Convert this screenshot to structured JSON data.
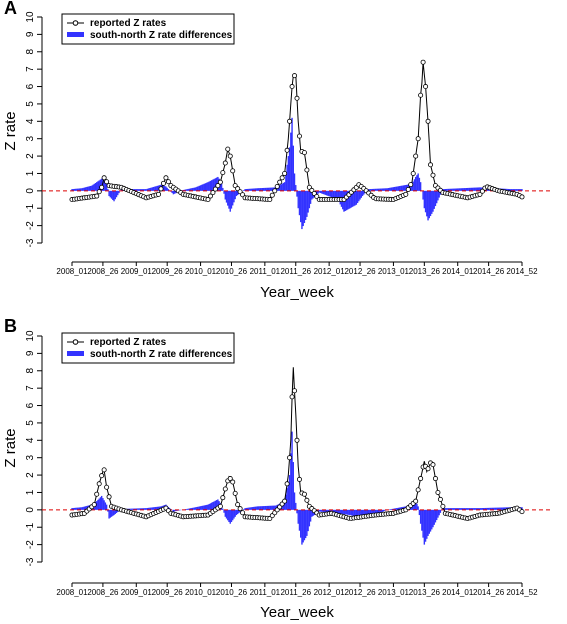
{
  "chart_data": [
    {
      "panel": "A",
      "type": "line",
      "xlabel": "Year_week",
      "ylabel": "Z rate",
      "ylim": [
        -3,
        10
      ],
      "yticks": [
        -3,
        -2,
        -1,
        0,
        1,
        2,
        3,
        4,
        5,
        6,
        7,
        8,
        9,
        10
      ],
      "xlim": [
        0,
        364
      ],
      "xtick_values": [
        0,
        25,
        52,
        77,
        104,
        129,
        156,
        181,
        208,
        233,
        260,
        285,
        312,
        337,
        364
      ],
      "xtick_labels": [
        "2008_01",
        "2008_26",
        "2009_01",
        "2009_26",
        "2010_01",
        "2010_26",
        "2011_01",
        "2011_26",
        "2012_01",
        "2012_26",
        "2013_01",
        "2013_26",
        "2014_01",
        "2014_26",
        "2014_52"
      ],
      "baseline": 0,
      "legend": {
        "position": "top-left",
        "entries": [
          "reported Z rates",
          "south-north Z rate differences"
        ]
      },
      "colors": {
        "line": "#000000",
        "bars": "#3333ff",
        "baseline": "#dd0000"
      },
      "series": [
        {
          "name": "reported Z rates",
          "style": "line-points",
          "x": [
            0,
            20,
            24,
            26,
            30,
            40,
            60,
            70,
            76,
            80,
            90,
            110,
            120,
            124,
            126,
            128,
            132,
            140,
            160,
            172,
            175,
            177,
            178,
            179,
            181,
            183,
            185,
            188,
            192,
            200,
            220,
            230,
            232,
            235,
            245,
            260,
            270,
            275,
            280,
            282,
            283,
            284,
            286,
            288,
            290,
            294,
            300,
            320,
            330,
            335,
            345,
            360,
            364
          ],
          "y": [
            -0.5,
            -0.3,
            0.2,
            0.75,
            0.3,
            0.2,
            -0.4,
            -0.2,
            0.75,
            0.3,
            -0.2,
            -0.5,
            0.5,
            1.6,
            2.4,
            2.0,
            0.3,
            -0.4,
            -0.5,
            1.0,
            3.0,
            5.0,
            6.0,
            6.6,
            6.65,
            4.0,
            2.3,
            2.2,
            0.2,
            -0.5,
            -0.5,
            0.2,
            0.35,
            0.2,
            -0.45,
            -0.5,
            -0.2,
            0.5,
            3.0,
            5.5,
            6.2,
            7.4,
            6.0,
            4.0,
            1.5,
            0.3,
            -0.1,
            -0.4,
            -0.2,
            0.25,
            0.0,
            -0.2,
            -0.35
          ]
        },
        {
          "name": "south-north Z rate differences",
          "style": "bar",
          "x": [
            0,
            8,
            16,
            20,
            24,
            28,
            30,
            34,
            40,
            60,
            72,
            76,
            82,
            90,
            100,
            110,
            118,
            121,
            124,
            128,
            133,
            140,
            150,
            165,
            172,
            176,
            178,
            180,
            183,
            186,
            190,
            194,
            200,
            215,
            220,
            225,
            230,
            235,
            240,
            255,
            275,
            278,
            280,
            282,
            285,
            288,
            292,
            300,
            330,
            355
          ],
          "y": [
            0.1,
            0.15,
            0.3,
            0.5,
            0.7,
            0.5,
            -0.3,
            -0.6,
            0.1,
            0.1,
            0.35,
            0.25,
            -0.2,
            0.05,
            0.2,
            0.5,
            0.8,
            0.5,
            -0.5,
            -1.2,
            -0.3,
            0.1,
            0.15,
            0.2,
            0.5,
            2.5,
            4.2,
            1.0,
            -1.0,
            -2.2,
            -1.5,
            -0.5,
            -0.1,
            -0.5,
            -1.2,
            -1.0,
            -0.8,
            -0.3,
            0.1,
            0.15,
            0.4,
            0.8,
            1.0,
            0.5,
            -1.0,
            -1.7,
            -1.2,
            0.1,
            0.2,
            0.1
          ]
        }
      ]
    },
    {
      "panel": "B",
      "type": "line",
      "xlabel": "Year_week",
      "ylabel": "Z rate",
      "ylim": [
        -3,
        10
      ],
      "yticks": [
        -3,
        -2,
        -1,
        0,
        1,
        2,
        3,
        4,
        5,
        6,
        7,
        8,
        9,
        10
      ],
      "xlim": [
        0,
        364
      ],
      "xtick_values": [
        0,
        25,
        52,
        77,
        104,
        129,
        156,
        181,
        208,
        233,
        260,
        285,
        312,
        337,
        364
      ],
      "xtick_labels": [
        "2008_01",
        "2008_26",
        "2009_01",
        "2009_26",
        "2010_01",
        "2010_26",
        "2011_01",
        "2011_26",
        "2012_01",
        "2012_26",
        "2013_01",
        "2013_26",
        "2014_01",
        "2014_26",
        "2014_52"
      ],
      "baseline": 0,
      "legend": {
        "position": "top-left",
        "entries": [
          "reported Z rates",
          "south-north Z rate differences"
        ]
      },
      "colors": {
        "line": "#000000",
        "bars": "#3333ff",
        "baseline": "#dd0000"
      },
      "series": [
        {
          "name": "reported Z rates",
          "style": "line-points",
          "x": [
            0,
            10,
            18,
            22,
            25,
            26,
            28,
            32,
            40,
            60,
            76,
            80,
            90,
            110,
            120,
            124,
            127,
            130,
            134,
            140,
            160,
            172,
            175,
            177,
            178,
            179,
            181,
            183,
            185,
            188,
            192,
            200,
            210,
            225,
            245,
            260,
            270,
            278,
            282,
            285,
            287,
            290,
            292,
            296,
            302,
            320,
            330,
            345,
            360,
            364
          ],
          "y": [
            -0.3,
            -0.2,
            0.3,
            1.5,
            2.2,
            2.3,
            1.3,
            0.2,
            0.0,
            -0.4,
            0.1,
            -0.2,
            -0.4,
            -0.3,
            0.2,
            1.2,
            1.9,
            1.6,
            0.3,
            -0.4,
            -0.5,
            0.5,
            2.0,
            4.0,
            6.5,
            8.2,
            5.5,
            2.5,
            1.0,
            0.9,
            0.2,
            -0.3,
            -0.2,
            -0.5,
            -0.3,
            -0.2,
            0.0,
            0.5,
            1.8,
            2.8,
            2.2,
            2.7,
            2.6,
            1.0,
            -0.2,
            -0.5,
            -0.3,
            -0.2,
            0.1,
            -0.1
          ]
        },
        {
          "name": "south-north Z rate differences",
          "style": "bar",
          "x": [
            0,
            8,
            16,
            20,
            24,
            28,
            30,
            34,
            40,
            60,
            72,
            76,
            82,
            100,
            110,
            118,
            121,
            124,
            128,
            133,
            140,
            150,
            165,
            172,
            176,
            178,
            180,
            183,
            186,
            190,
            194,
            200,
            215,
            225,
            235,
            245,
            255,
            270,
            275,
            278,
            280,
            282,
            285,
            288,
            292,
            300,
            330,
            355
          ],
          "y": [
            0.1,
            0.15,
            0.3,
            0.5,
            0.8,
            0.3,
            -0.5,
            -0.3,
            0.05,
            0.1,
            0.2,
            0.3,
            -0.1,
            0.15,
            0.3,
            0.6,
            0.3,
            -0.4,
            -0.8,
            -0.3,
            0.1,
            0.2,
            0.25,
            0.5,
            2.0,
            4.5,
            1.0,
            -0.8,
            -2.0,
            -1.5,
            -0.4,
            -0.1,
            -0.2,
            -0.3,
            -0.5,
            -0.3,
            0.0,
            0.2,
            0.3,
            0.5,
            0.2,
            -0.8,
            -2.0,
            -1.5,
            -1.0,
            0.1,
            0.1,
            0.15
          ]
        }
      ]
    }
  ]
}
